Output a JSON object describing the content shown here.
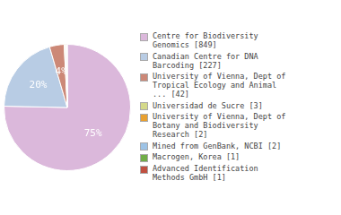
{
  "chart_data": {
    "type": "pie",
    "categories": [
      "Centre for Biodiversity\nGenomics [849]",
      "Canadian Centre for DNA\nBarcoding [227]",
      "University of Vienna, Dept of\nTropical Ecology and Animal\n... [42]",
      "Universidad de Sucre [3]",
      "University of Vienna, Dept of\nBotany and Biodiversity\nResearch [2]",
      "Mined from GenBank, NCBI [2]",
      "Macrogen, Korea [1]",
      "Advanced Identification\nMethods GmbH [1]"
    ],
    "values": [
      849,
      227,
      42,
      3,
      2,
      2,
      1,
      1
    ],
    "value_labels": [
      "75%",
      "20%",
      "4%",
      null,
      null,
      null,
      null,
      null
    ],
    "colors": [
      "#dbb8db",
      "#b8cce4",
      "#cc8877",
      "#d4d98a",
      "#e8a030",
      "#9dc3e6",
      "#70ad47",
      "#c05040"
    ],
    "data_labels": true,
    "legend": "right"
  }
}
